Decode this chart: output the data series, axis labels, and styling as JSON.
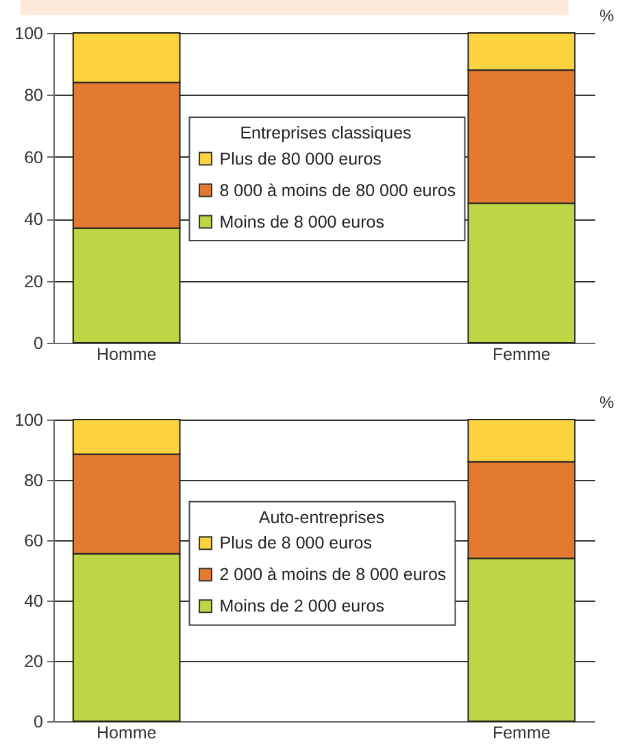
{
  "chart_data": [
    {
      "type": "bar",
      "stacked": true,
      "categories": [
        "Homme",
        "Femme"
      ],
      "series": [
        {
          "name": "Moins de 8 000 euros",
          "color": "#bed644",
          "values": [
            37,
            45
          ]
        },
        {
          "name": "8 000 à moins de 80 000 euros",
          "color": "#e37a30",
          "values": [
            47,
            43
          ]
        },
        {
          "name": "Plus de 80 000 euros",
          "color": "#fdd33f",
          "values": [
            16,
            12
          ]
        }
      ],
      "legend_title": "Entreprises classiques",
      "ylabel": "%",
      "ylim": [
        0,
        100
      ],
      "yticks": [
        0,
        20,
        40,
        60,
        80,
        100
      ],
      "grid": "y",
      "legend": "center"
    },
    {
      "type": "bar",
      "stacked": true,
      "categories": [
        "Homme",
        "Femme"
      ],
      "series": [
        {
          "name": "Moins de 2 000 euros",
          "color": "#bed644",
          "values": [
            55.5,
            54
          ]
        },
        {
          "name": "2 000 à moins de 8 000 euros",
          "color": "#e37a30",
          "values": [
            33,
            32
          ]
        },
        {
          "name": "Plus de 8 000 euros",
          "color": "#fdd33f",
          "values": [
            11.5,
            14
          ]
        }
      ],
      "legend_title": "Auto-entreprises",
      "ylabel": "%",
      "ylim": [
        0,
        100
      ],
      "yticks": [
        0,
        20,
        40,
        60,
        80,
        100
      ],
      "grid": "y",
      "legend": "center"
    }
  ]
}
